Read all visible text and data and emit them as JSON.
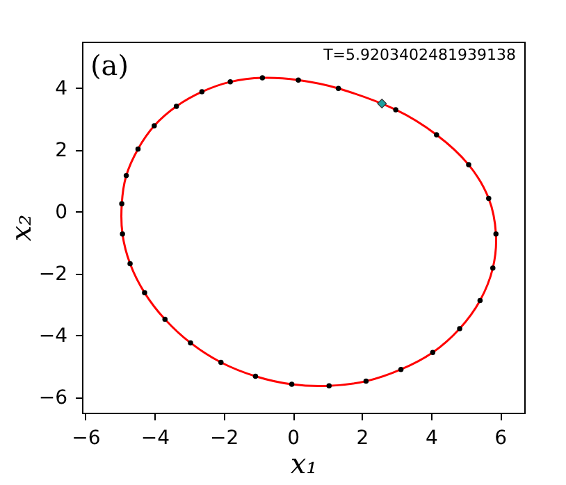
{
  "chart_data": {
    "type": "scatter",
    "xlabel": "x₁",
    "ylabel": "x₂",
    "annotations": [
      "(a)",
      "T=5.9203402481939138"
    ],
    "xlim": [
      -6.1,
      6.7
    ],
    "ylim": [
      -6.5,
      5.5
    ],
    "xticks": [
      -6,
      -4,
      -2,
      0,
      2,
      4,
      6
    ],
    "yticks": [
      -6,
      -4,
      -2,
      0,
      2,
      4
    ],
    "grid": false,
    "series": [
      {
        "type": "scatter",
        "color": "#000000",
        "marker": "circle",
        "x": [
          -4.95,
          -4.82,
          -4.48,
          -4.01,
          -3.37,
          -2.63,
          -1.81,
          -0.88,
          0.16,
          1.32,
          2.98,
          4.16,
          5.09,
          5.67,
          5.88,
          5.79,
          5.42,
          4.83,
          4.05,
          3.13,
          2.12,
          1.05,
          -0.03,
          -1.08,
          -2.08,
          -2.96,
          -3.7,
          -4.29,
          -4.71,
          -4.93
        ],
        "values": [
          0.26,
          1.17,
          2.03,
          2.78,
          3.41,
          3.88,
          4.2,
          4.33,
          4.26,
          3.99,
          3.3,
          2.49,
          1.52,
          0.43,
          -0.72,
          -1.82,
          -2.87,
          -3.78,
          -4.55,
          -5.1,
          -5.48,
          -5.63,
          -5.58,
          -5.32,
          -4.87,
          -4.24,
          -3.48,
          -2.62,
          -1.68,
          -0.72
        ]
      },
      {
        "type": "scatter",
        "color": "#1fa0a0",
        "marker": "diamond",
        "x": [
          2.58
        ],
        "values": [
          3.5
        ]
      }
    ]
  }
}
